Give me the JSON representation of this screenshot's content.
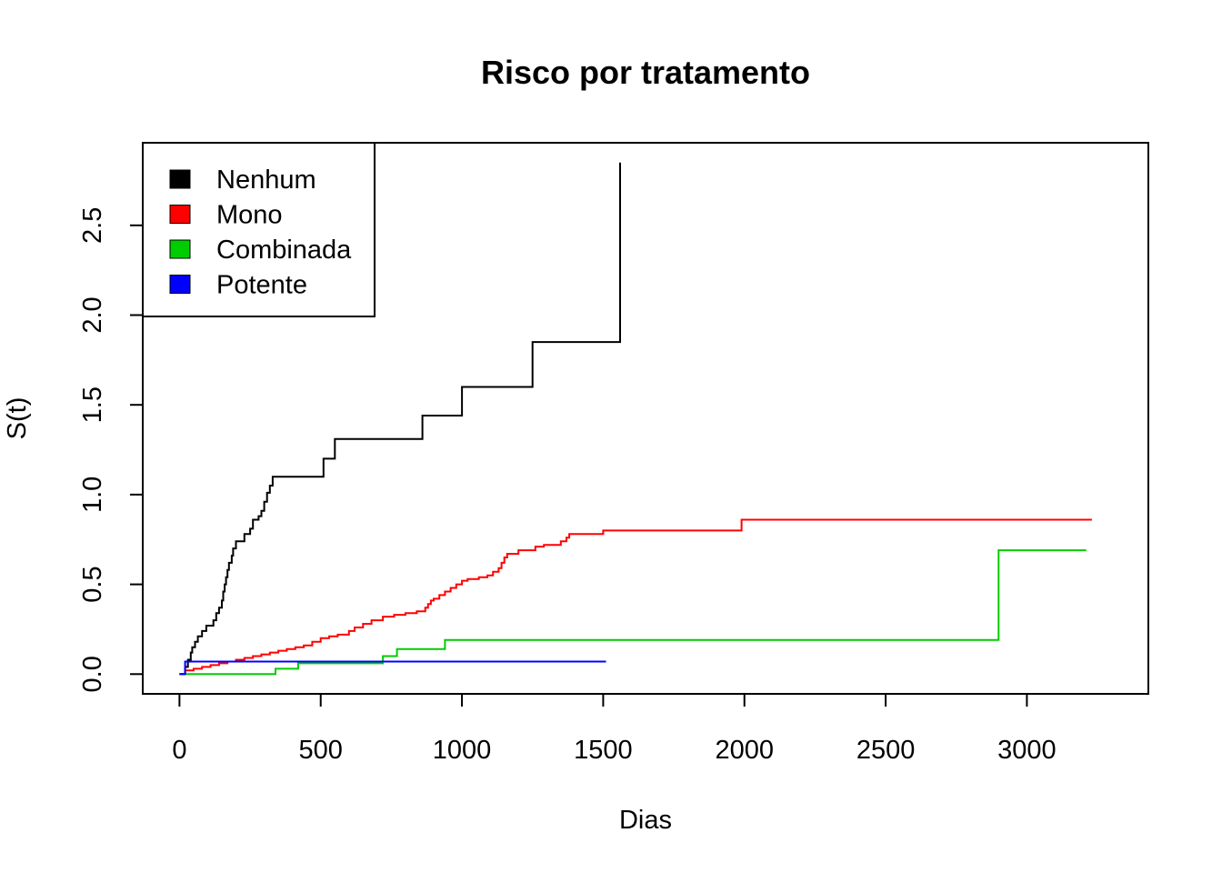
{
  "chart_data": {
    "type": "line",
    "step": true,
    "title": "Risco por tratamento",
    "xlabel": "Dias",
    "ylabel": "S(t)",
    "xlim": [
      -130,
      3430
    ],
    "ylim": [
      -0.11,
      2.96
    ],
    "xticks": [
      0,
      500,
      1000,
      1500,
      2000,
      2500,
      3000
    ],
    "yticks": [
      0.0,
      0.5,
      1.0,
      1.5,
      2.0,
      2.5
    ],
    "xtick_labels": [
      "0",
      "500",
      "1000",
      "1500",
      "2000",
      "2500",
      "3000"
    ],
    "ytick_labels": [
      "0.0",
      "0.5",
      "1.0",
      "1.5",
      "2.0",
      "2.5"
    ],
    "grid": false,
    "legend_position": "top-left",
    "series": [
      {
        "name": "Nenhum",
        "color": "#000000",
        "points": [
          [
            0,
            0
          ],
          [
            20,
            0.04
          ],
          [
            30,
            0.08
          ],
          [
            40,
            0.12
          ],
          [
            45,
            0.15
          ],
          [
            55,
            0.18
          ],
          [
            65,
            0.21
          ],
          [
            80,
            0.24
          ],
          [
            95,
            0.27
          ],
          [
            120,
            0.3
          ],
          [
            130,
            0.34
          ],
          [
            140,
            0.37
          ],
          [
            150,
            0.41
          ],
          [
            155,
            0.46
          ],
          [
            160,
            0.5
          ],
          [
            165,
            0.54
          ],
          [
            170,
            0.58
          ],
          [
            175,
            0.62
          ],
          [
            185,
            0.66
          ],
          [
            190,
            0.7
          ],
          [
            200,
            0.74
          ],
          [
            230,
            0.78
          ],
          [
            250,
            0.81
          ],
          [
            260,
            0.86
          ],
          [
            280,
            0.88
          ],
          [
            290,
            0.91
          ],
          [
            300,
            0.96
          ],
          [
            310,
            1.01
          ],
          [
            320,
            1.05
          ],
          [
            330,
            1.1
          ],
          [
            510,
            1.2
          ],
          [
            550,
            1.31
          ],
          [
            860,
            1.44
          ],
          [
            1000,
            1.6
          ],
          [
            1250,
            1.85
          ],
          [
            1560,
            2.85
          ]
        ],
        "end_x": 1560
      },
      {
        "name": "Mono",
        "color": "#ff0000",
        "points": [
          [
            0,
            0
          ],
          [
            20,
            0.02
          ],
          [
            50,
            0.03
          ],
          [
            80,
            0.04
          ],
          [
            110,
            0.05
          ],
          [
            140,
            0.06
          ],
          [
            170,
            0.07
          ],
          [
            200,
            0.08
          ],
          [
            230,
            0.09
          ],
          [
            260,
            0.1
          ],
          [
            290,
            0.11
          ],
          [
            320,
            0.12
          ],
          [
            350,
            0.13
          ],
          [
            380,
            0.14
          ],
          [
            410,
            0.15
          ],
          [
            440,
            0.16
          ],
          [
            470,
            0.18
          ],
          [
            500,
            0.2
          ],
          [
            530,
            0.21
          ],
          [
            560,
            0.22
          ],
          [
            600,
            0.24
          ],
          [
            620,
            0.26
          ],
          [
            650,
            0.28
          ],
          [
            680,
            0.3
          ],
          [
            720,
            0.32
          ],
          [
            760,
            0.33
          ],
          [
            800,
            0.34
          ],
          [
            840,
            0.35
          ],
          [
            870,
            0.37
          ],
          [
            880,
            0.39
          ],
          [
            890,
            0.41
          ],
          [
            900,
            0.42
          ],
          [
            920,
            0.44
          ],
          [
            940,
            0.46
          ],
          [
            960,
            0.48
          ],
          [
            980,
            0.5
          ],
          [
            1000,
            0.52
          ],
          [
            1020,
            0.53
          ],
          [
            1060,
            0.54
          ],
          [
            1090,
            0.55
          ],
          [
            1110,
            0.57
          ],
          [
            1130,
            0.59
          ],
          [
            1140,
            0.62
          ],
          [
            1150,
            0.65
          ],
          [
            1160,
            0.67
          ],
          [
            1200,
            0.69
          ],
          [
            1260,
            0.71
          ],
          [
            1290,
            0.72
          ],
          [
            1350,
            0.74
          ],
          [
            1370,
            0.76
          ],
          [
            1380,
            0.78
          ],
          [
            1500,
            0.8
          ],
          [
            1990,
            0.86
          ]
        ],
        "end_x": 3230
      },
      {
        "name": "Combinada",
        "color": "#00cd00",
        "points": [
          [
            0,
            0
          ],
          [
            340,
            0.03
          ],
          [
            420,
            0.06
          ],
          [
            720,
            0.1
          ],
          [
            770,
            0.14
          ],
          [
            940,
            0.19
          ],
          [
            2900,
            0.69
          ]
        ],
        "end_x": 3210
      },
      {
        "name": "Potente",
        "color": "#0000ff",
        "points": [
          [
            0,
            0
          ],
          [
            20,
            0.07
          ]
        ],
        "end_x": 1510
      }
    ]
  }
}
